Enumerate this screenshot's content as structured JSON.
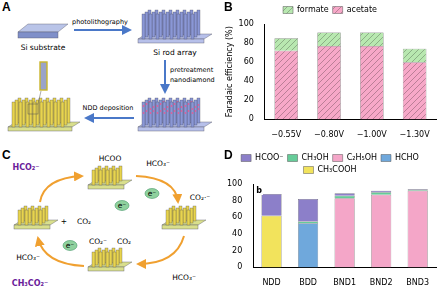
{
  "panel_a": {
    "panel_label": "A",
    "labels": [
      "Si substrate",
      "photolithography",
      "Si rod array",
      "pretreatment",
      "nanodiamond",
      "NDD deposition"
    ]
  },
  "panel_c": {
    "panel_label": "C",
    "labels": [
      "HCO₂⁻",
      "HCOO",
      "HCO₃⁻",
      "e⁻",
      "+",
      "CO₂",
      "e⁻",
      "CO₂·⁻",
      "CO₂⁻",
      "CO₂",
      "HCO₃⁻",
      "e⁻",
      "HCO₃⁻",
      "CH₃CO₂⁻"
    ]
  },
  "chart_data": [
    {
      "type": "bar",
      "panel_label": "B",
      "y_label": "Faradaic efficiency (%)",
      "categories": [
        "−0.55V",
        "−0.80V",
        "−1.00V",
        "−1.30V"
      ],
      "series": [
        {
          "name": "acetate",
          "color": "#f7a8c8",
          "values": [
            72,
            77,
            77,
            60
          ]
        },
        {
          "name": "formate",
          "color": "#b8e8b0",
          "values": [
            13,
            14,
            14,
            14
          ]
        }
      ],
      "stacked": true,
      "ylim": [
        0,
        100
      ],
      "yticks": [
        0,
        20,
        40,
        60,
        80,
        100
      ],
      "grid": false,
      "legend": "top"
    },
    {
      "type": "bar",
      "panel_label": "D",
      "annotations": [
        "b"
      ],
      "categories": [
        "NDD",
        "BDD",
        "BND1",
        "BND2",
        "BND3"
      ],
      "series": [
        {
          "name": "CH₃COOH",
          "color": "#f2e35c",
          "values": [
            62,
            0,
            0,
            0,
            0
          ]
        },
        {
          "name": "HCHO",
          "color": "#6fa8dc",
          "values": [
            0,
            53,
            0,
            0,
            0
          ]
        },
        {
          "name": "C₂H₅OH",
          "color": "#f4a6c8",
          "values": [
            0,
            0,
            83,
            87,
            92
          ]
        },
        {
          "name": "CH₃OH",
          "color": "#66cc99",
          "values": [
            0,
            2,
            3,
            3,
            1
          ]
        },
        {
          "name": "HCOO⁻",
          "color": "#8c7fc9",
          "values": [
            26,
            27,
            3,
            2,
            1
          ]
        }
      ],
      "stacked": true,
      "ylim": [
        0,
        100
      ],
      "yticks": [
        0,
        20,
        40,
        60,
        80,
        100
      ],
      "grid": false,
      "legend": "top"
    }
  ]
}
